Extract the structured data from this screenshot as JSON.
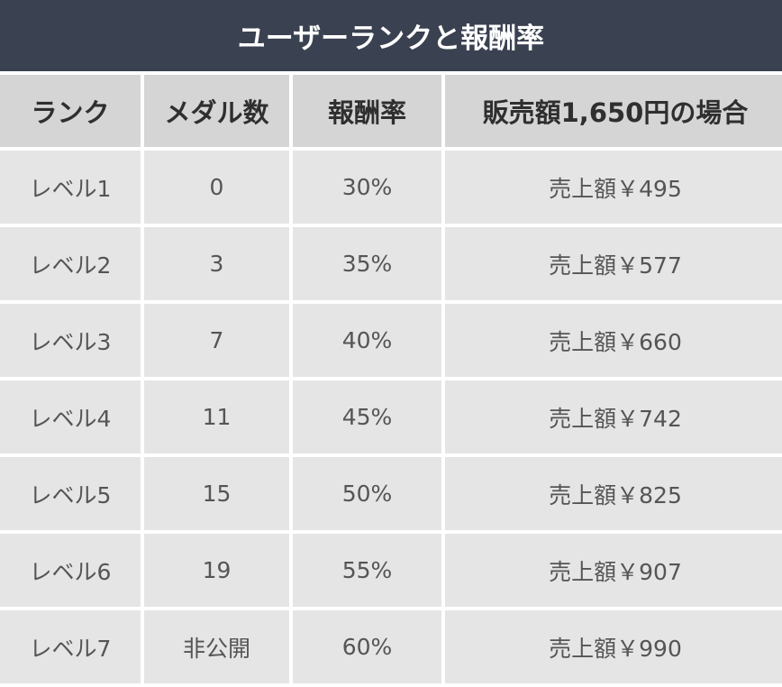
{
  "title": "ユーザーランクと報酬率",
  "columns": [
    "ランク",
    "メダル数",
    "報酬率",
    "販売額1,650円の場合"
  ],
  "rows": [
    {
      "rank": "レベル1",
      "medals": "0",
      "rate": "30%",
      "amount": "売上額￥495"
    },
    {
      "rank": "レベル2",
      "medals": "3",
      "rate": "35%",
      "amount": "売上額￥577"
    },
    {
      "rank": "レベル3",
      "medals": "7",
      "rate": "40%",
      "amount": "売上額￥660"
    },
    {
      "rank": "レベル4",
      "medals": "11",
      "rate": "45%",
      "amount": "売上額￥742"
    },
    {
      "rank": "レベル5",
      "medals": "15",
      "rate": "50%",
      "amount": "売上額￥825"
    },
    {
      "rank": "レベル6",
      "medals": "19",
      "rate": "55%",
      "amount": "売上額￥907"
    },
    {
      "rank": "レベル7",
      "medals": "非公開",
      "rate": "60%",
      "amount": "売上額￥990"
    }
  ],
  "colors": {
    "title_bg": "#3a4150",
    "header_bg": "#d6d5d6",
    "cell_bg": "#e6e5e6"
  }
}
